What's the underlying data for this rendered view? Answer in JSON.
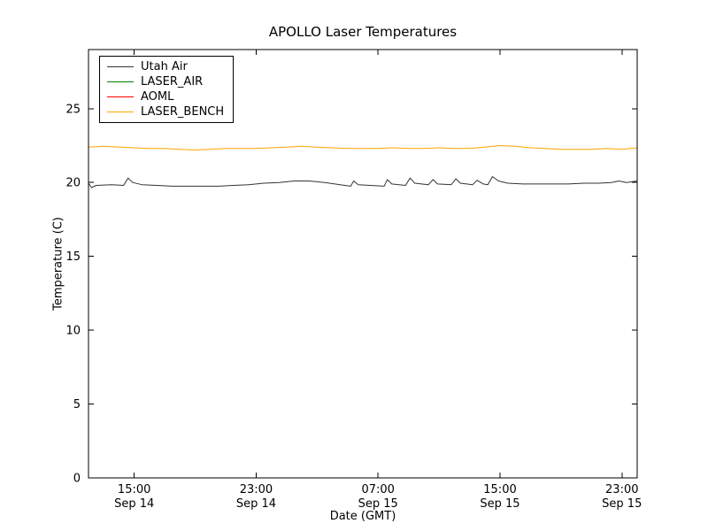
{
  "chart_data": {
    "type": "line",
    "title": "APOLLO Laser Temperatures",
    "xlabel": "Date (GMT)",
    "ylabel": "Temperature (C)",
    "grid": false,
    "legend_position": "upper left",
    "ylim": [
      0,
      29
    ],
    "x_range": [
      0,
      36
    ],
    "x_unit": "hours since Sep 14 12:00 GMT",
    "y_ticks": [
      0,
      5,
      10,
      15,
      20,
      25
    ],
    "x_ticks": [
      {
        "t": 3,
        "time": "15:00",
        "date": "Sep 14"
      },
      {
        "t": 11,
        "time": "23:00",
        "date": "Sep 14"
      },
      {
        "t": 19,
        "time": "07:00",
        "date": "Sep 15"
      },
      {
        "t": 27,
        "time": "15:00",
        "date": "Sep 15"
      },
      {
        "t": 35,
        "time": "23:00",
        "date": "Sep 15"
      }
    ],
    "series": [
      {
        "name": "Utah Air",
        "color": "#333333",
        "points": [
          [
            0,
            19.95
          ],
          [
            0.2,
            19.65
          ],
          [
            0.5,
            19.8
          ],
          [
            1.5,
            19.85
          ],
          [
            2.3,
            19.8
          ],
          [
            2.6,
            20.3
          ],
          [
            2.9,
            20.0
          ],
          [
            3.5,
            19.85
          ],
          [
            4.5,
            19.8
          ],
          [
            5.5,
            19.75
          ],
          [
            6.5,
            19.75
          ],
          [
            7.5,
            19.75
          ],
          [
            8.5,
            19.75
          ],
          [
            9.5,
            19.8
          ],
          [
            10.5,
            19.85
          ],
          [
            11.5,
            19.95
          ],
          [
            12.5,
            20.0
          ],
          [
            13.5,
            20.1
          ],
          [
            14.5,
            20.1
          ],
          [
            15.5,
            20.0
          ],
          [
            16.5,
            19.85
          ],
          [
            17.2,
            19.75
          ],
          [
            17.4,
            20.1
          ],
          [
            17.7,
            19.85
          ],
          [
            18.5,
            19.8
          ],
          [
            19.4,
            19.75
          ],
          [
            19.6,
            20.2
          ],
          [
            19.9,
            19.9
          ],
          [
            20.8,
            19.8
          ],
          [
            21.1,
            20.3
          ],
          [
            21.4,
            19.95
          ],
          [
            22.3,
            19.85
          ],
          [
            22.6,
            20.2
          ],
          [
            22.9,
            19.9
          ],
          [
            23.8,
            19.85
          ],
          [
            24.1,
            20.25
          ],
          [
            24.4,
            19.95
          ],
          [
            25.2,
            19.85
          ],
          [
            25.5,
            20.15
          ],
          [
            25.9,
            19.9
          ],
          [
            26.2,
            19.85
          ],
          [
            26.5,
            20.4
          ],
          [
            26.9,
            20.1
          ],
          [
            27.5,
            19.95
          ],
          [
            28.5,
            19.9
          ],
          [
            29.5,
            19.9
          ],
          [
            30.5,
            19.9
          ],
          [
            31.5,
            19.9
          ],
          [
            32.5,
            19.95
          ],
          [
            33.5,
            19.95
          ],
          [
            34.3,
            20.0
          ],
          [
            34.8,
            20.1
          ],
          [
            35.3,
            20.0
          ],
          [
            36,
            20.1
          ]
        ]
      },
      {
        "name": "LASER_AIR",
        "color": "#008000",
        "points": []
      },
      {
        "name": "AOML",
        "color": "#ff0000",
        "points": []
      },
      {
        "name": "LASER_BENCH",
        "color": "#ffa500",
        "points": [
          [
            0,
            22.4
          ],
          [
            1,
            22.45
          ],
          [
            2,
            22.4
          ],
          [
            3,
            22.35
          ],
          [
            4,
            22.3
          ],
          [
            5,
            22.3
          ],
          [
            6,
            22.25
          ],
          [
            7,
            22.2
          ],
          [
            8,
            22.25
          ],
          [
            9,
            22.3
          ],
          [
            10,
            22.3
          ],
          [
            11,
            22.3
          ],
          [
            12,
            22.35
          ],
          [
            13,
            22.4
          ],
          [
            14,
            22.45
          ],
          [
            15,
            22.4
          ],
          [
            16,
            22.35
          ],
          [
            17,
            22.3
          ],
          [
            18,
            22.3
          ],
          [
            19,
            22.3
          ],
          [
            20,
            22.35
          ],
          [
            21,
            22.3
          ],
          [
            22,
            22.3
          ],
          [
            23,
            22.35
          ],
          [
            24,
            22.3
          ],
          [
            25,
            22.3
          ],
          [
            26,
            22.4
          ],
          [
            27,
            22.5
          ],
          [
            28,
            22.45
          ],
          [
            29,
            22.35
          ],
          [
            30,
            22.3
          ],
          [
            31,
            22.25
          ],
          [
            32,
            22.25
          ],
          [
            33,
            22.25
          ],
          [
            34,
            22.3
          ],
          [
            35,
            22.25
          ],
          [
            36,
            22.35
          ]
        ]
      }
    ]
  }
}
